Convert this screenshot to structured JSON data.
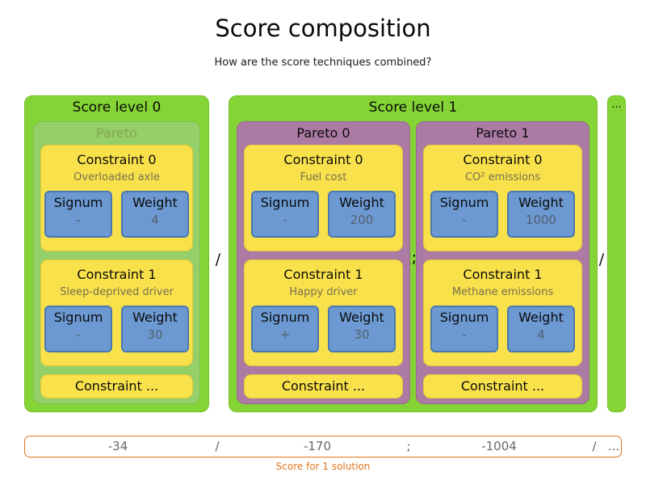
{
  "title": "Score composition",
  "subtitle": "How are the score techniques combined?",
  "more_levels_indicator": "...",
  "separators": {
    "between_levels": "/",
    "between_paretos": ";",
    "before_more": "/"
  },
  "levels": [
    {
      "label": "Score level 0",
      "paretos": [
        {
          "label": "Pareto",
          "constraints": [
            {
              "label": "Constraint 0",
              "description": "Overloaded axle",
              "signum_label": "Signum",
              "signum_value": "-",
              "weight_label": "Weight",
              "weight_value": "4"
            },
            {
              "label": "Constraint 1",
              "description": "Sleep-deprived driver",
              "signum_label": "Signum",
              "signum_value": "-",
              "weight_label": "Weight",
              "weight_value": "30"
            }
          ],
          "more": "Constraint ..."
        }
      ]
    },
    {
      "label": "Score level 1",
      "paretos": [
        {
          "label": "Pareto 0",
          "constraints": [
            {
              "label": "Constraint 0",
              "description": "Fuel cost",
              "signum_label": "Signum",
              "signum_value": "-",
              "weight_label": "Weight",
              "weight_value": "200"
            },
            {
              "label": "Constraint 1",
              "description": "Happy driver",
              "signum_label": "Signum",
              "signum_value": "+",
              "weight_label": "Weight",
              "weight_value": "30"
            }
          ],
          "more": "Constraint ..."
        },
        {
          "label": "Pareto 1",
          "constraints": [
            {
              "label": "Constraint 0",
              "description": "CO² emissions",
              "signum_label": "Signum",
              "signum_value": "-",
              "weight_label": "Weight",
              "weight_value": "1000"
            },
            {
              "label": "Constraint 1",
              "description": "Methane emissions",
              "signum_label": "Signum",
              "signum_value": "-",
              "weight_label": "Weight",
              "weight_value": "4"
            }
          ],
          "more": "Constraint ..."
        }
      ]
    }
  ],
  "score_bar": {
    "values": [
      "-34",
      "/",
      "-170",
      ";",
      "-1004",
      "/",
      "..."
    ],
    "caption": "Score for 1 solution"
  },
  "colors": {
    "level_green": "#85d435",
    "pareto_overlay_green": "#95cf68",
    "pareto_purple": "#ac7ba4",
    "constraint_yellow": "#f9e14b",
    "signum_weight_blue": "#6d99d2",
    "score_accent_orange": "#e0761f"
  }
}
